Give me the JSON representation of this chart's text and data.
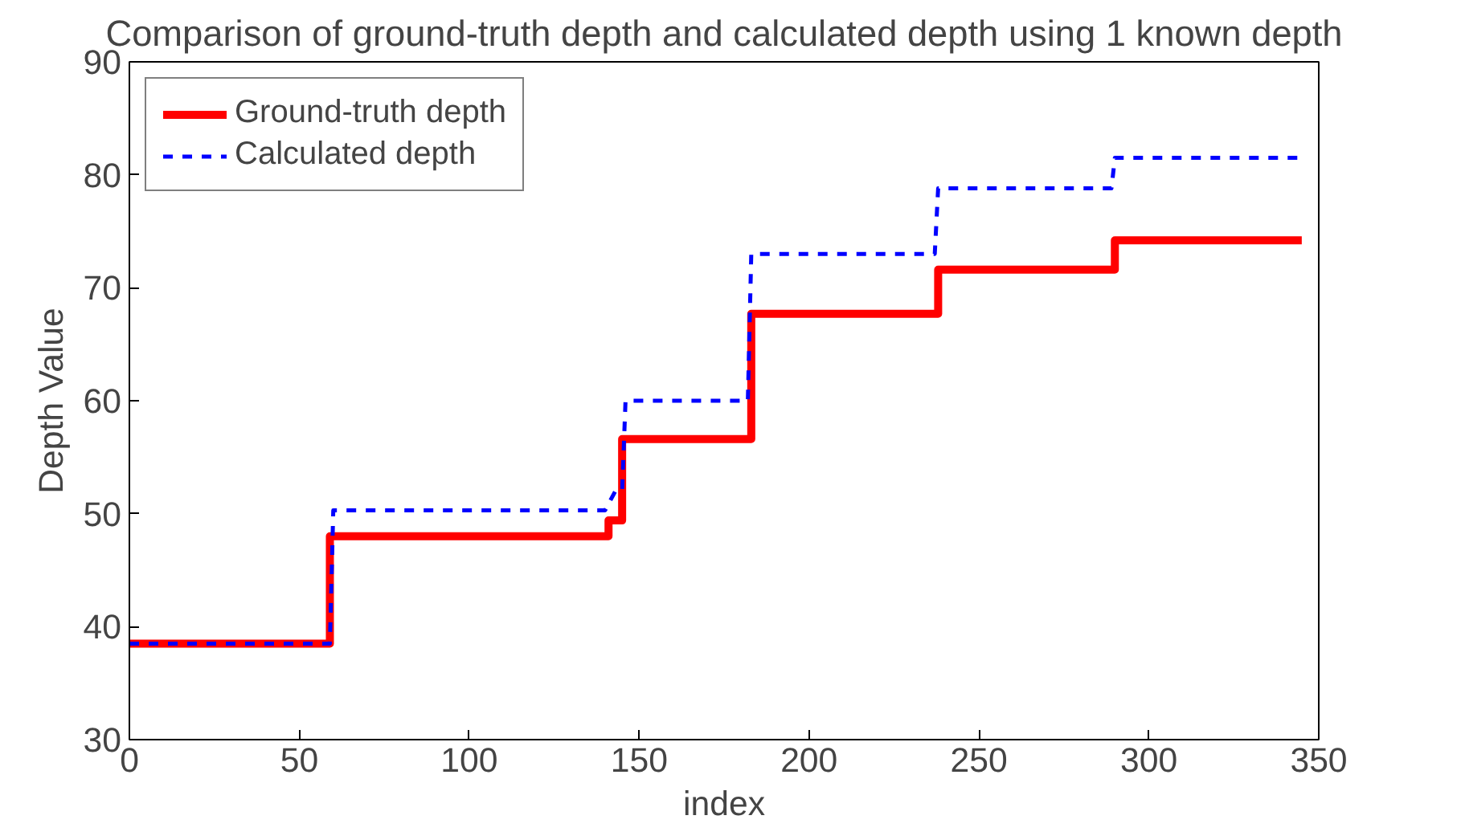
{
  "chart_data": {
    "type": "line",
    "title": "Comparison of ground-truth depth and calculated depth using 1 known depth",
    "xlabel": "index",
    "ylabel": "Depth Value",
    "xlim": [
      0,
      350
    ],
    "xticks": [
      0,
      50,
      100,
      150,
      200,
      250,
      300,
      350
    ],
    "ylim": [
      30,
      90
    ],
    "yticks": [
      30,
      40,
      50,
      60,
      70,
      80,
      90
    ],
    "grid": false,
    "legend": "top left",
    "series": [
      {
        "name": "Ground-truth depth",
        "color": "#ff0000",
        "line_style": "solid",
        "x": [
          0,
          59,
          59,
          141,
          141,
          145,
          145,
          183,
          183,
          238,
          238,
          290,
          290,
          345
        ],
        "values": [
          38.5,
          38.5,
          48,
          48,
          49.4,
          49.4,
          56.6,
          56.6,
          67.7,
          67.7,
          71.6,
          71.6,
          74.2,
          74.2
        ]
      },
      {
        "name": "Calculated depth",
        "color": "#0000ff",
        "line_style": "dashed",
        "x": [
          0,
          59,
          60,
          140,
          143,
          145,
          146,
          182,
          183,
          237,
          238,
          289,
          290,
          345
        ],
        "values": [
          38.5,
          38.5,
          50.3,
          50.3,
          52,
          52,
          60,
          60,
          73,
          73,
          78.8,
          78.8,
          81.5,
          81.5
        ]
      }
    ]
  }
}
